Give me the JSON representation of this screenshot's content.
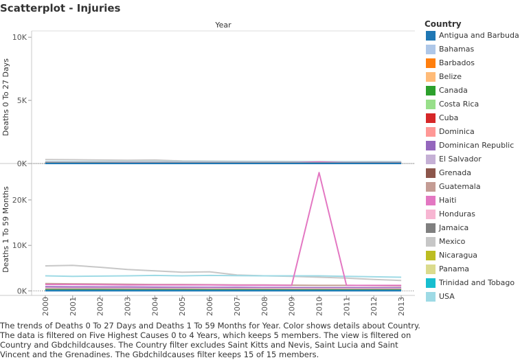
{
  "title": "Scatterplot - Injuries",
  "caption": "The trends of Deaths 0 To 27 Days and Deaths 1 To 59 Months for Year.  Color shows details about Country. The data is filtered on Five Highest Causes 0 to 4 Years, which keeps 5 members. The view is filtered on Country and Gbdchildcauses. The Country filter excludes Saint Kitts and Nevis, Saint Lucia and Saint Vincent and the Grenadines. The Gbdchildcauses filter keeps 15 of 15 members.",
  "legend": {
    "title": "Country",
    "items": [
      {
        "label": "Antigua and Barbuda",
        "color": "#1f77b4"
      },
      {
        "label": "Bahamas",
        "color": "#aec7e8"
      },
      {
        "label": "Barbados",
        "color": "#ff7f0e"
      },
      {
        "label": "Belize",
        "color": "#ffbb78"
      },
      {
        "label": "Canada",
        "color": "#2ca02c"
      },
      {
        "label": "Costa Rica",
        "color": "#98df8a"
      },
      {
        "label": "Cuba",
        "color": "#d62728"
      },
      {
        "label": "Dominica",
        "color": "#ff9896"
      },
      {
        "label": "Dominican Republic",
        "color": "#9467bd"
      },
      {
        "label": "El Salvador",
        "color": "#c5b0d5"
      },
      {
        "label": "Grenada",
        "color": "#8c564b"
      },
      {
        "label": "Guatemala",
        "color": "#c49c94"
      },
      {
        "label": "Haiti",
        "color": "#e377c2"
      },
      {
        "label": "Honduras",
        "color": "#f7b6d2"
      },
      {
        "label": "Jamaica",
        "color": "#7f7f7f"
      },
      {
        "label": "Mexico",
        "color": "#c7c7c7"
      },
      {
        "label": "Nicaragua",
        "color": "#bcbd22"
      },
      {
        "label": "Panama",
        "color": "#dbdb8d"
      },
      {
        "label": "Trinidad and Tobago",
        "color": "#17becf"
      },
      {
        "label": "USA",
        "color": "#9edae5"
      }
    ]
  },
  "chart_data": {
    "type": "line",
    "column_header": "Year",
    "x": [
      "2000",
      "2001",
      "2002",
      "2003",
      "2004",
      "2005",
      "2006",
      "2007",
      "2008",
      "2009",
      "2010",
      "2011",
      "2012",
      "2013"
    ],
    "panels": [
      {
        "ylabel": "Deaths 0 To 27 Days",
        "ylim": [
          0,
          10500
        ],
        "ticks": [
          {
            "value": 0,
            "label": "0K"
          },
          {
            "value": 5000,
            "label": "5K"
          },
          {
            "value": 10000,
            "label": "10K"
          }
        ],
        "series": [
          {
            "name": "Mexico",
            "color": "#c7c7c7",
            "values": [
              310,
              300,
              280,
              260,
              280,
              200,
              190,
              180,
              170,
              165,
              160,
              155,
              160,
              150
            ]
          },
          {
            "name": "USA",
            "color": "#9edae5",
            "values": [
              150,
              150,
              148,
              146,
              145,
              144,
              143,
              142,
              140,
              138,
              137,
              136,
              135,
              134
            ]
          },
          {
            "name": "Guatemala",
            "color": "#c49c94",
            "values": [
              90,
              88,
              87,
              86,
              85,
              84,
              83,
              82,
              81,
              80,
              79,
              78,
              77,
              76
            ]
          },
          {
            "name": "Haiti",
            "color": "#e377c2",
            "values": [
              70,
              70,
              69,
              69,
              68,
              68,
              67,
              67,
              66,
              66,
              120,
              66,
              65,
              65
            ]
          },
          {
            "name": "Dominican Republic",
            "color": "#9467bd",
            "values": [
              50,
              50,
              49,
              49,
              48,
              48,
              47,
              47,
              46,
              46,
              45,
              45,
              44,
              44
            ]
          },
          {
            "name": "Honduras",
            "color": "#f7b6d2",
            "values": [
              40,
              40,
              39,
              39,
              38,
              38,
              37,
              37,
              36,
              36,
              35,
              35,
              34,
              34
            ]
          },
          {
            "name": "Canada",
            "color": "#2ca02c",
            "values": [
              30,
              30,
              30,
              29,
              29,
              29,
              28,
              28,
              28,
              27,
              27,
              27,
              26,
              26
            ]
          },
          {
            "name": "Jamaica",
            "color": "#7f7f7f",
            "values": [
              20,
              20,
              20,
              20,
              19,
              19,
              19,
              19,
              18,
              18,
              18,
              18,
              17,
              17
            ]
          },
          {
            "name": "Trinidad and Tobago",
            "color": "#17becf",
            "values": [
              8,
              8,
              8,
              8,
              8,
              8,
              8,
              8,
              8,
              8,
              8,
              8,
              8,
              8
            ]
          },
          {
            "name": "Antigua and Barbuda",
            "color": "#1f77b4",
            "values": [
              2,
              2,
              2,
              2,
              2,
              2,
              2,
              2,
              2,
              2,
              2,
              2,
              2,
              2
            ]
          }
        ]
      },
      {
        "ylabel": "Deaths 1 To 59 Months",
        "ylim": [
          -1000,
          28000
        ],
        "ticks": [
          {
            "value": 0,
            "label": "0K"
          },
          {
            "value": 10000,
            "label": "10K"
          },
          {
            "value": 20000,
            "label": "20K"
          }
        ],
        "series": [
          {
            "name": "Mexico",
            "color": "#c7c7c7",
            "values": [
              5500,
              5600,
              5200,
              4700,
              4400,
              4100,
              4200,
              3500,
              3300,
              3200,
              3000,
              2800,
              2500,
              2300
            ]
          },
          {
            "name": "USA",
            "color": "#9edae5",
            "values": [
              3300,
              3200,
              3250,
              3300,
              3400,
              3300,
              3400,
              3350,
              3300,
              3300,
              3300,
              3200,
              3100,
              3000
            ]
          },
          {
            "name": "Guatemala",
            "color": "#c49c94",
            "values": [
              1600,
              1550,
              1500,
              1450,
              1400,
              1400,
              1350,
              1300,
              1300,
              1250,
              1200,
              1200,
              1150,
              1100
            ]
          },
          {
            "name": "Haiti",
            "color": "#e377c2",
            "values": [
              1400,
              1400,
              1350,
              1300,
              1300,
              1300,
              1300,
              1250,
              1250,
              1200,
              26000,
              1200,
              1200,
              1200
            ]
          },
          {
            "name": "Dominican Republic",
            "color": "#9467bd",
            "values": [
              900,
              880,
              860,
              840,
              820,
              800,
              780,
              760,
              740,
              720,
              700,
              690,
              680,
              670
            ]
          },
          {
            "name": "Honduras",
            "color": "#f7b6d2",
            "values": [
              600,
              590,
              580,
              570,
              560,
              550,
              540,
              530,
              520,
              510,
              500,
              490,
              480,
              470
            ]
          },
          {
            "name": "Canada",
            "color": "#2ca02c",
            "values": [
              300,
              300,
              295,
              290,
              285,
              280,
              275,
              270,
              265,
              260,
              255,
              250,
              245,
              240
            ]
          },
          {
            "name": "Jamaica",
            "color": "#7f7f7f",
            "values": [
              150,
              150,
              148,
              146,
              144,
              142,
              140,
              138,
              136,
              134,
              132,
              130,
              128,
              126
            ]
          },
          {
            "name": "Trinidad and Tobago",
            "color": "#17becf",
            "values": [
              60,
              60,
              60,
              60,
              58,
              58,
              58,
              58,
              56,
              56,
              56,
              56,
              54,
              54
            ]
          },
          {
            "name": "Antigua and Barbuda",
            "color": "#1f77b4",
            "values": [
              10,
              10,
              10,
              10,
              10,
              10,
              10,
              10,
              10,
              10,
              10,
              10,
              10,
              10
            ]
          }
        ]
      }
    ]
  }
}
